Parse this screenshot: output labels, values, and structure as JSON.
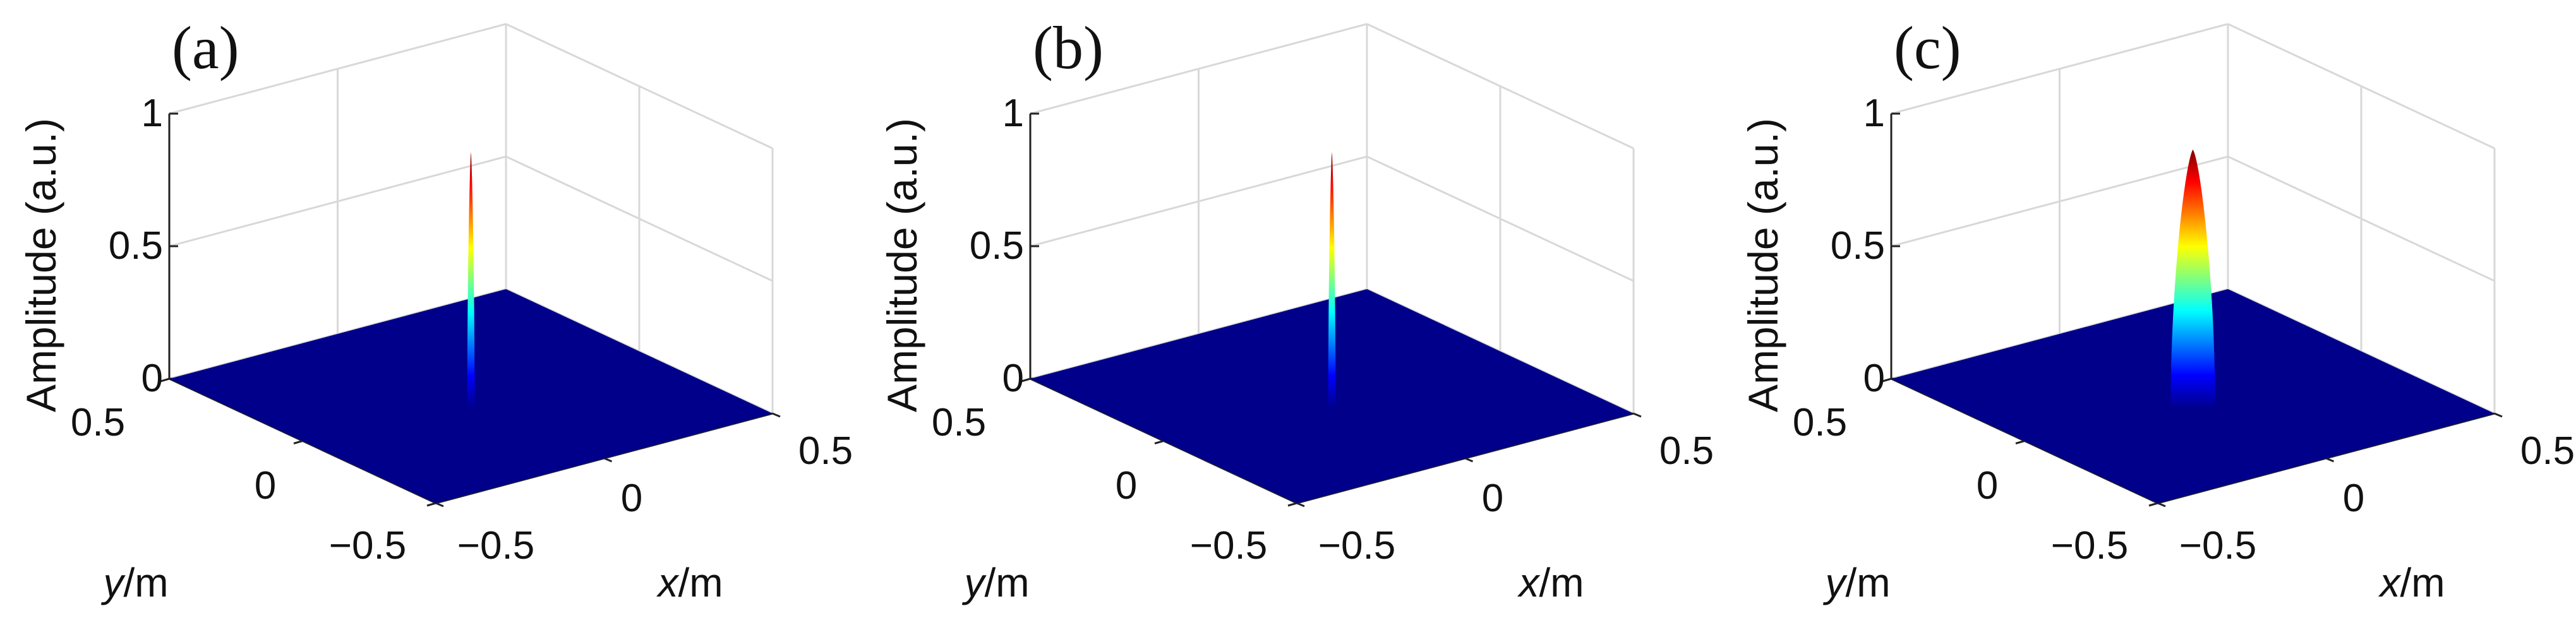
{
  "chart_data": [
    {
      "type": "surface",
      "panel_label": "(a)",
      "zlabel": "Amplitude (a.u.)",
      "xlabel": {
        "var": "x",
        "unit": "/m"
      },
      "ylabel": {
        "var": "y",
        "unit": "/m"
      },
      "z_ticks": [
        "0",
        "0.5",
        "1"
      ],
      "x_ticks": [
        "−0.5",
        "0",
        "0.5"
      ],
      "y_ticks": [
        "0.5",
        "0",
        "−0.5"
      ],
      "xlim": [
        -0.5,
        0.5
      ],
      "ylim": [
        -0.5,
        0.5
      ],
      "zlim": [
        0,
        1
      ],
      "grid": true,
      "colormap": "jet",
      "base_color": "#00008B",
      "peak": {
        "x": 0,
        "y": 0,
        "amplitude": 0.92,
        "width_m": 0.01
      }
    },
    {
      "type": "surface",
      "panel_label": "(b)",
      "zlabel": "Amplitude (a.u.)",
      "xlabel": {
        "var": "x",
        "unit": "/m"
      },
      "ylabel": {
        "var": "y",
        "unit": "/m"
      },
      "z_ticks": [
        "0",
        "0.5",
        "1"
      ],
      "x_ticks": [
        "−0.5",
        "0",
        "0.5"
      ],
      "y_ticks": [
        "0.5",
        "0",
        "−0.5"
      ],
      "xlim": [
        -0.5,
        0.5
      ],
      "ylim": [
        -0.5,
        0.5
      ],
      "zlim": [
        0,
        1
      ],
      "grid": true,
      "colormap": "jet",
      "base_color": "#00008B",
      "peak": {
        "x": 0,
        "y": 0,
        "amplitude": 0.92,
        "width_m": 0.01
      }
    },
    {
      "type": "surface",
      "panel_label": "(c)",
      "zlabel": "Amplitude (a.u.)",
      "xlabel": {
        "var": "x",
        "unit": "/m"
      },
      "ylabel": {
        "var": "y",
        "unit": "/m"
      },
      "z_ticks": [
        "0",
        "0.5",
        "1"
      ],
      "x_ticks": [
        "−0.5",
        "0",
        "0.5"
      ],
      "y_ticks": [
        "0.5",
        "0",
        "−0.5"
      ],
      "xlim": [
        -0.5,
        0.5
      ],
      "ylim": [
        -0.5,
        0.5
      ],
      "zlim": [
        0,
        1
      ],
      "grid": true,
      "colormap": "jet",
      "base_color": "#00008B",
      "peak": {
        "x": 0,
        "y": 0,
        "amplitude": 0.93,
        "width_m": 0.06
      }
    }
  ]
}
